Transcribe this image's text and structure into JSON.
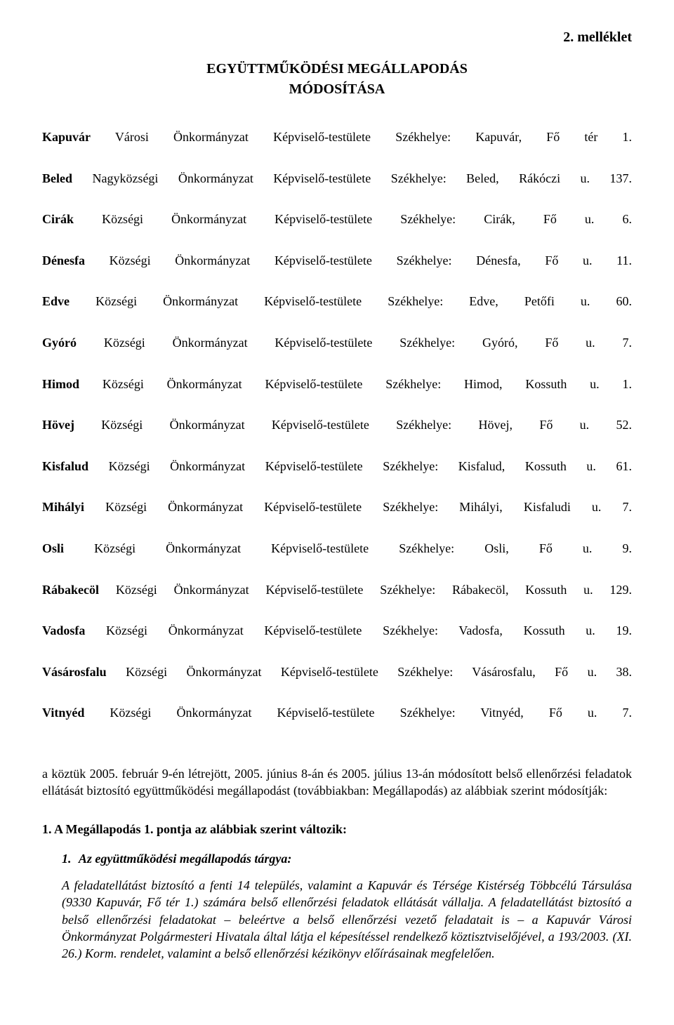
{
  "annex_label": "2. melléklet",
  "title": "EGYÜTTMŰKÖDÉSI MEGÁLLAPODÁS",
  "subtitle": "MÓDOSÍTÁSA",
  "entities": [
    {
      "name_bold": "Kapuvár",
      "name_rest": " Városi Önkormányzat",
      "body": "Képviselő-testülete",
      "seat_label": "Székhelye:",
      "seat": "Kapuvár, Fő tér 1."
    },
    {
      "name_bold": "Beled",
      "name_rest": " Nagyközségi Önkormányzat",
      "body": "Képviselő-testülete",
      "seat_label": "Székhelye:",
      "seat": "Beled, Rákóczi u. 137."
    },
    {
      "name_bold": "Cirák",
      "name_rest": " Községi Önkormányzat",
      "body": "Képviselő-testülete",
      "seat_label": "Székhelye:",
      "seat": "Cirák, Fő u. 6."
    },
    {
      "name_bold": "Dénesfa",
      "name_rest": " Községi Önkormányzat",
      "body": "Képviselő-testülete",
      "seat_label": "Székhelye:",
      "seat": "Dénesfa, Fő u. 11."
    },
    {
      "name_bold": "Edve",
      "name_rest": " Községi Önkormányzat",
      "body": "Képviselő-testülete",
      "seat_label": "Székhelye:",
      "seat": "Edve, Petőfi u. 60."
    },
    {
      "name_bold": "Gyóró",
      "name_rest": " Községi Önkormányzat",
      "body": "Képviselő-testülete",
      "seat_label": "Székhelye:",
      "seat": "Gyóró, Fő u. 7."
    },
    {
      "name_bold": "Himod",
      "name_rest": " Községi Önkormányzat",
      "body": "Képviselő-testülete",
      "seat_label": "Székhelye:",
      "seat": "Himod, Kossuth u. 1."
    },
    {
      "name_bold": "Hövej",
      "name_rest": " Községi Önkormányzat",
      "body": "Képviselő-testülete",
      "seat_label": "Székhelye:",
      "seat": "Hövej, Fő u. 52."
    },
    {
      "name_bold": "Kisfalud",
      "name_rest": " Községi Önkormányzat",
      "body": "Képviselő-testülete",
      "seat_label": "Székhelye:",
      "seat": "Kisfalud, Kossuth u. 61."
    },
    {
      "name_bold": "Mihályi",
      "name_rest": " Községi Önkormányzat",
      "body": "Képviselő-testülete",
      "seat_label": "Székhelye:",
      "seat": "Mihályi, Kisfaludi u. 7."
    },
    {
      "name_bold": "Osli",
      "name_rest": " Községi Önkormányzat",
      "body": "Képviselő-testülete",
      "seat_label": "Székhelye:",
      "seat": "Osli, Fő u. 9."
    },
    {
      "name_bold": "Rábakecöl",
      "name_rest": " Községi Önkormányzat",
      "body": "Képviselő-testülete",
      "seat_label": "Székhelye:",
      "seat": "Rábakecöl, Kossuth u. 129."
    },
    {
      "name_bold": "Vadosfa",
      "name_rest": " Községi Önkormányzat",
      "body": "Képviselő-testülete",
      "seat_label": "Székhelye:",
      "seat": "Vadosfa, Kossuth u. 19."
    },
    {
      "name_bold": "Vásárosfalu",
      "name_rest": " Községi Önkormányzat",
      "body": "Képviselő-testülete",
      "seat_label": "Székhelye:",
      "seat": "Vásárosfalu, Fő u. 38."
    },
    {
      "name_bold": "Vitnyéd",
      "name_rest": " Községi Önkormányzat",
      "body": "Képviselő-testülete",
      "seat_label": "Székhelye:",
      "seat": "Vitnyéd, Fő u. 7."
    }
  ],
  "body_paragraph": "a köztük 2005. február 9-én létrejött, 2005. június 8-án és 2005. július 13-án módosított belső ellenőrzési feladatok ellátását biztosító együttműködési megállapodást (továbbiakban: Megállapodás) az alábbiak szerint módosítják:",
  "section1_heading": "1. A Megállapodás 1. pontja az alábbiak szerint változik:",
  "section1_item_num": "1.",
  "section1_item_title": "Az együttműködési megállapodás tárgya:",
  "section1_body": "A feladatellátást biztosító a fenti 14 település, valamint a Kapuvár és Térsége Kistérség Többcélú Társulása (9330 Kapuvár, Fő tér 1.) számára belső ellenőrzési feladatok ellátását vállalja. A feladatellátást biztosító a belső ellenőrzési feladatokat – beleértve a belső ellenőrzési vezető feladatait is – a Kapuvár Városi Önkormányzat Polgármesteri Hivatala által látja el képesítéssel rendelkező köztisztviselőjével, a 193/2003. (XI. 26.) Korm. rendelet, valamint a belső ellenőrzési kézikönyv előírásainak megfelelően."
}
